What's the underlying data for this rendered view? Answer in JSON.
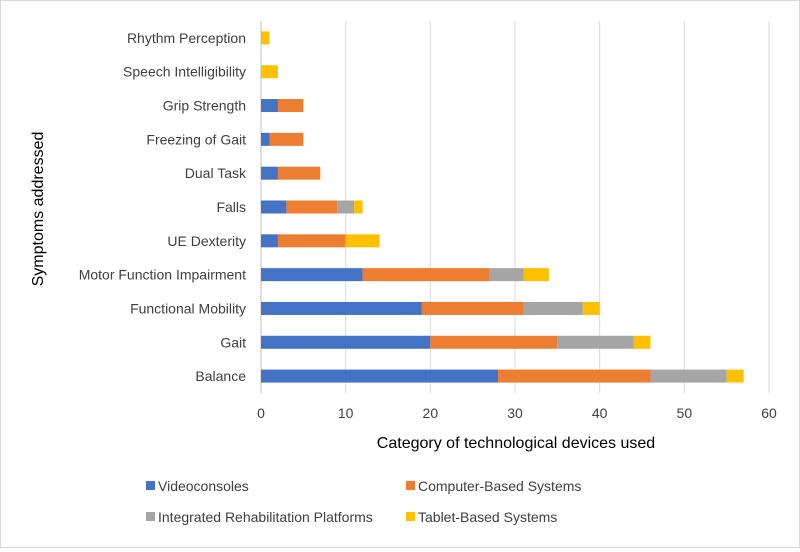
{
  "chart_data": {
    "type": "bar",
    "orientation": "horizontal",
    "stacked": true,
    "categories": [
      "Balance",
      "Gait",
      "Functional Mobility",
      "Motor Function Impairment",
      "UE Dexterity",
      "Falls",
      "Dual Task",
      "Freezing of Gait",
      "Grip Strength",
      "Speech Intelligibility",
      "Rhythm Perception"
    ],
    "series": [
      {
        "name": "Videoconsoles",
        "color": "#4472c4",
        "values": [
          28,
          20,
          19,
          12,
          2,
          3,
          2,
          1,
          2,
          0,
          0
        ]
      },
      {
        "name": "Computer-Based Systems",
        "color": "#ed7d31",
        "values": [
          18,
          15,
          12,
          15,
          8,
          6,
          5,
          4,
          3,
          0,
          0
        ]
      },
      {
        "name": "Integrated Rehabilitation Platforms",
        "color": "#a5a5a5",
        "values": [
          9,
          9,
          7,
          4,
          0,
          2,
          0,
          0,
          0,
          0,
          0
        ]
      },
      {
        "name": "Tablet-Based Systems",
        "color": "#ffc000",
        "values": [
          2,
          2,
          2,
          3,
          4,
          1,
          0,
          0,
          0,
          2,
          1
        ]
      }
    ],
    "xlabel": "Category of technological devices used",
    "ylabel": "Symptoms addressed",
    "xlim": [
      0,
      60
    ],
    "xticks": [
      0,
      10,
      20,
      30,
      40,
      50,
      60
    ],
    "grid": "vertical",
    "legend_position": "bottom"
  }
}
